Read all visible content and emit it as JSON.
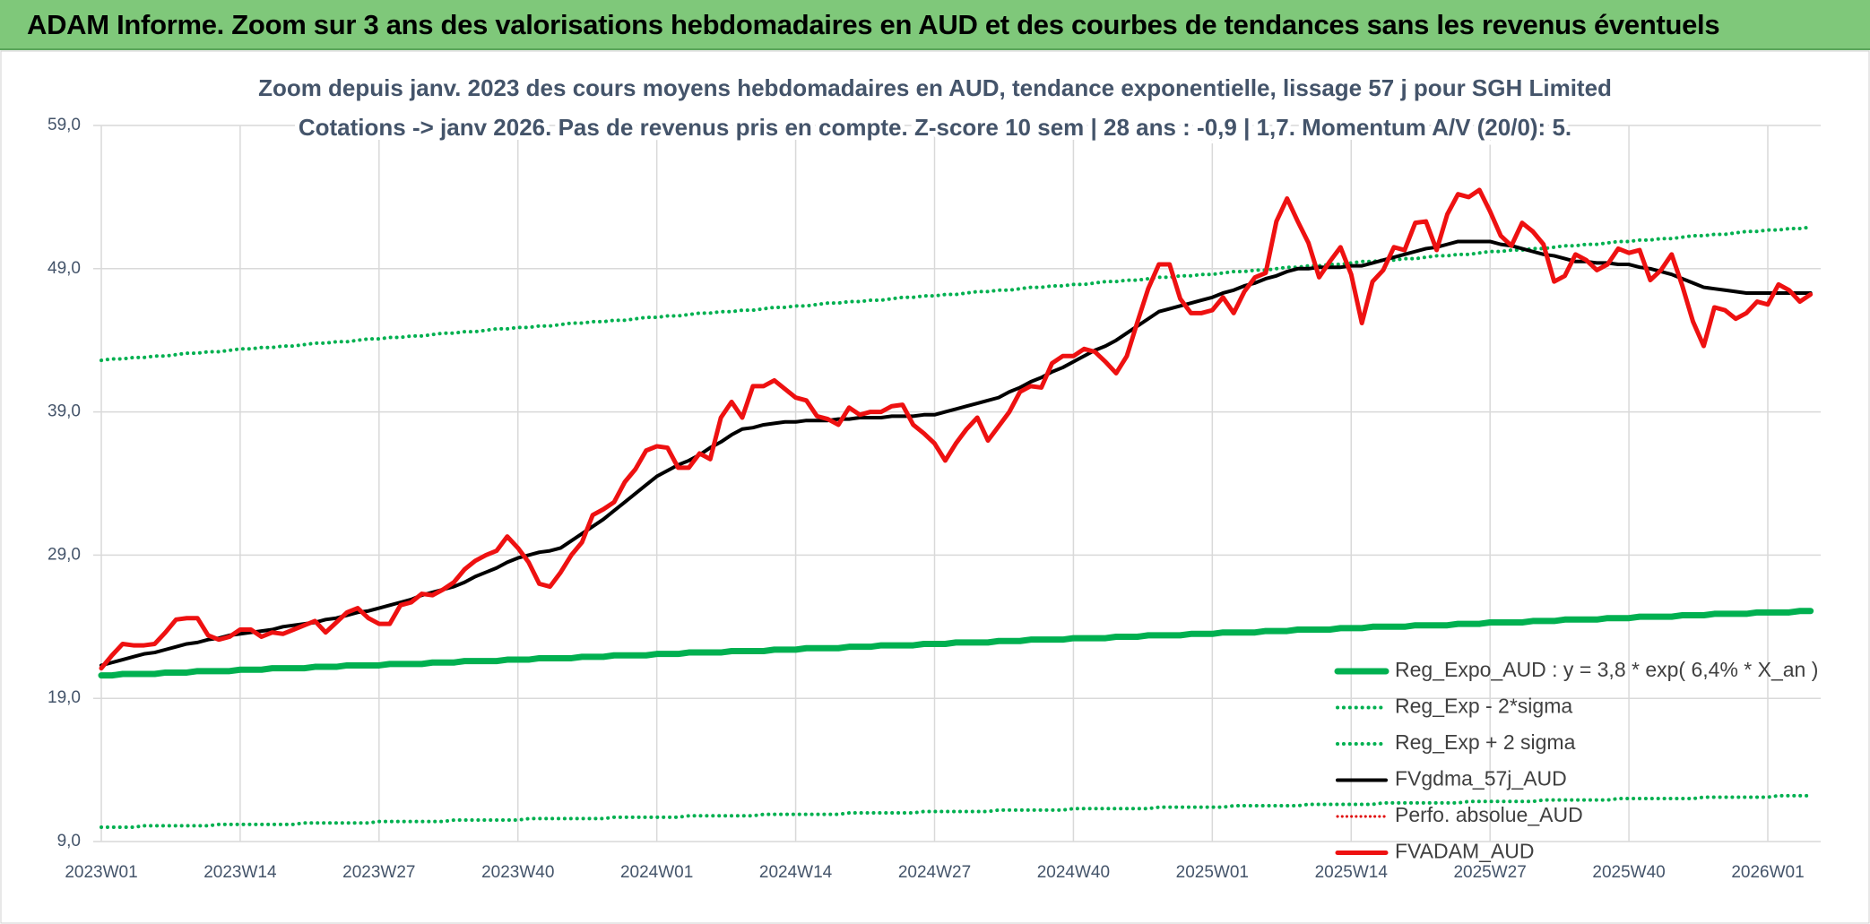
{
  "chart_data": {
    "type": "line",
    "title": "ADAM Informe. Zoom sur 3 ans des valorisations hebdomadaires en AUD et des courbes de tendances sans les revenus éventuels",
    "subtitle": [
      "Zoom depuis janv. 2023 des cours moyens hebdomadaires en AUD, tendance exponentielle, lissage 57 j pour SGH Limited",
      "Cotations -> janv 2026. Pas de revenus pris en compte. Z-score 10 sem | 28 ans : -0,9 | 1,7. Momentum A/V (20/0): 5."
    ],
    "categories": [
      "2023W01",
      null,
      null,
      null,
      null,
      null,
      null,
      null,
      null,
      null,
      null,
      null,
      null,
      "2023W14",
      null,
      null,
      null,
      null,
      null,
      null,
      null,
      null,
      null,
      null,
      null,
      null,
      "2023W27",
      null,
      null,
      null,
      null,
      null,
      null,
      null,
      null,
      null,
      null,
      null,
      null,
      "2023W40",
      null,
      null,
      null,
      null,
      null,
      null,
      null,
      null,
      null,
      null,
      null,
      null,
      "2024W01",
      null,
      null,
      null,
      null,
      null,
      null,
      null,
      null,
      null,
      null,
      null,
      null,
      "2024W14",
      null,
      null,
      null,
      null,
      null,
      null,
      null,
      null,
      null,
      null,
      null,
      null,
      "2024W27",
      null,
      null,
      null,
      null,
      null,
      null,
      null,
      null,
      null,
      null,
      null,
      null,
      "2024W40",
      null,
      null,
      null,
      null,
      null,
      null,
      null,
      null,
      null,
      null,
      null,
      null,
      "2025W01",
      null,
      null,
      null,
      null,
      null,
      null,
      null,
      null,
      null,
      null,
      null,
      null,
      "2025W14",
      null,
      null,
      null,
      null,
      null,
      null,
      null,
      null,
      null,
      null,
      null,
      null,
      "2025W27",
      null,
      null,
      null,
      null,
      null,
      null,
      null,
      null,
      null,
      null,
      null,
      null,
      "2025W40",
      null,
      null,
      null,
      null,
      null,
      null,
      null,
      null,
      null,
      null,
      null,
      null,
      "2026W01",
      null,
      null,
      null,
      null
    ],
    "ylim": [
      9,
      59
    ],
    "yticks": [
      {
        "value": 9,
        "label": "9,0"
      },
      {
        "value": 19,
        "label": "19,0"
      },
      {
        "value": 29,
        "label": "29,0"
      },
      {
        "value": 39,
        "label": "39,0"
      },
      {
        "value": 49,
        "label": "49,0"
      },
      {
        "value": 59,
        "label": "59,0"
      }
    ],
    "grid": true,
    "legend": "lower-right",
    "series": [
      {
        "name": "Reg_Expo_AUD : y = 3,8 * exp( 6,4% * X_an )",
        "color": "#00b050",
        "dash": "solid",
        "width": 7,
        "values": [
          20.6,
          20.6,
          20.7,
          20.7,
          20.7,
          20.7,
          20.8,
          20.8,
          20.8,
          20.9,
          20.9,
          20.9,
          20.9,
          21.0,
          21.0,
          21.0,
          21.1,
          21.1,
          21.1,
          21.1,
          21.2,
          21.2,
          21.2,
          21.3,
          21.3,
          21.3,
          21.3,
          21.4,
          21.4,
          21.4,
          21.4,
          21.5,
          21.5,
          21.5,
          21.6,
          21.6,
          21.6,
          21.6,
          21.7,
          21.7,
          21.7,
          21.8,
          21.8,
          21.8,
          21.8,
          21.9,
          21.9,
          21.9,
          22.0,
          22.0,
          22.0,
          22.0,
          22.1,
          22.1,
          22.1,
          22.2,
          22.2,
          22.2,
          22.2,
          22.3,
          22.3,
          22.3,
          22.3,
          22.4,
          22.4,
          22.4,
          22.5,
          22.5,
          22.5,
          22.5,
          22.6,
          22.6,
          22.6,
          22.7,
          22.7,
          22.7,
          22.7,
          22.8,
          22.8,
          22.8,
          22.9,
          22.9,
          22.9,
          22.9,
          23.0,
          23.0,
          23.0,
          23.1,
          23.1,
          23.1,
          23.1,
          23.2,
          23.2,
          23.2,
          23.2,
          23.3,
          23.3,
          23.3,
          23.4,
          23.4,
          23.4,
          23.4,
          23.5,
          23.5,
          23.5,
          23.6,
          23.6,
          23.6,
          23.6,
          23.7,
          23.7,
          23.7,
          23.8,
          23.8,
          23.8,
          23.8,
          23.9,
          23.9,
          23.9,
          24.0,
          24.0,
          24.0,
          24.0,
          24.1,
          24.1,
          24.1,
          24.1,
          24.2,
          24.2,
          24.2,
          24.3,
          24.3,
          24.3,
          24.3,
          24.4,
          24.4,
          24.4,
          24.5,
          24.5,
          24.5,
          24.5,
          24.6,
          24.6,
          24.6,
          24.7,
          24.7,
          24.7,
          24.7,
          24.8,
          24.8,
          24.8,
          24.9,
          24.9,
          24.9,
          24.9,
          25.0,
          25.0,
          25.0,
          25.0,
          25.1,
          25.1
        ]
      },
      {
        "name": "Reg_Exp - 2*sigma",
        "color": "#00b050",
        "dash": "dotted",
        "width": 4,
        "values": [
          10.0,
          10.0,
          10.0,
          10.0,
          10.1,
          10.1,
          10.1,
          10.1,
          10.1,
          10.1,
          10.1,
          10.2,
          10.2,
          10.2,
          10.2,
          10.2,
          10.2,
          10.2,
          10.2,
          10.3,
          10.3,
          10.3,
          10.3,
          10.3,
          10.3,
          10.3,
          10.4,
          10.4,
          10.4,
          10.4,
          10.4,
          10.4,
          10.4,
          10.5,
          10.5,
          10.5,
          10.5,
          10.5,
          10.5,
          10.5,
          10.6,
          10.6,
          10.6,
          10.6,
          10.6,
          10.6,
          10.6,
          10.6,
          10.7,
          10.7,
          10.7,
          10.7,
          10.7,
          10.7,
          10.7,
          10.8,
          10.8,
          10.8,
          10.8,
          10.8,
          10.8,
          10.8,
          10.9,
          10.9,
          10.9,
          10.9,
          10.9,
          10.9,
          10.9,
          10.9,
          11.0,
          11.0,
          11.0,
          11.0,
          11.0,
          11.0,
          11.0,
          11.1,
          11.1,
          11.1,
          11.1,
          11.1,
          11.1,
          11.1,
          11.2,
          11.2,
          11.2,
          11.2,
          11.2,
          11.2,
          11.2,
          11.3,
          11.3,
          11.3,
          11.3,
          11.3,
          11.3,
          11.3,
          11.3,
          11.4,
          11.4,
          11.4,
          11.4,
          11.4,
          11.4,
          11.4,
          11.5,
          11.5,
          11.5,
          11.5,
          11.5,
          11.5,
          11.5,
          11.6,
          11.6,
          11.6,
          11.6,
          11.6,
          11.6,
          11.6,
          11.7,
          11.7,
          11.7,
          11.7,
          11.7,
          11.7,
          11.7,
          11.7,
          11.8,
          11.8,
          11.8,
          11.8,
          11.8,
          11.8,
          11.8,
          11.9,
          11.9,
          11.9,
          11.9,
          11.9,
          11.9,
          11.9,
          12.0,
          12.0,
          12.0,
          12.0,
          12.0,
          12.0,
          12.0,
          12.0,
          12.1,
          12.1,
          12.1,
          12.1,
          12.1,
          12.1,
          12.1,
          12.2,
          12.2,
          12.2,
          12.2
        ]
      },
      {
        "name": "Reg_Exp + 2 sigma",
        "color": "#00b050",
        "dash": "dotted",
        "width": 4,
        "values": [
          42.6,
          42.7,
          42.7,
          42.8,
          42.8,
          42.9,
          42.9,
          43.0,
          43.1,
          43.1,
          43.2,
          43.2,
          43.3,
          43.4,
          43.4,
          43.5,
          43.5,
          43.6,
          43.6,
          43.7,
          43.8,
          43.8,
          43.9,
          43.9,
          44.0,
          44.1,
          44.1,
          44.2,
          44.2,
          44.3,
          44.3,
          44.4,
          44.5,
          44.5,
          44.6,
          44.6,
          44.7,
          44.8,
          44.8,
          44.9,
          44.9,
          45.0,
          45.0,
          45.1,
          45.2,
          45.2,
          45.3,
          45.3,
          45.4,
          45.4,
          45.5,
          45.6,
          45.6,
          45.7,
          45.7,
          45.8,
          45.9,
          45.9,
          46.0,
          46.0,
          46.1,
          46.1,
          46.2,
          46.3,
          46.3,
          46.4,
          46.4,
          46.5,
          46.6,
          46.6,
          46.7,
          46.7,
          46.8,
          46.8,
          46.9,
          47.0,
          47.0,
          47.1,
          47.1,
          47.2,
          47.2,
          47.3,
          47.4,
          47.4,
          47.5,
          47.5,
          47.6,
          47.7,
          47.7,
          47.8,
          47.8,
          47.9,
          47.9,
          48.0,
          48.1,
          48.1,
          48.2,
          48.2,
          48.3,
          48.4,
          48.4,
          48.5,
          48.5,
          48.6,
          48.6,
          48.7,
          48.8,
          48.8,
          48.9,
          48.9,
          49.0,
          49.1,
          49.1,
          49.2,
          49.2,
          49.3,
          49.3,
          49.4,
          49.5,
          49.5,
          49.6,
          49.6,
          49.7,
          49.7,
          49.8,
          49.9,
          49.9,
          50.0,
          50.0,
          50.1,
          50.2,
          50.2,
          50.3,
          50.3,
          50.4,
          50.4,
          50.5,
          50.6,
          50.6,
          50.7,
          50.7,
          50.8,
          50.9,
          50.9,
          51.0,
          51.0,
          51.1,
          51.1,
          51.2,
          51.3,
          51.3,
          51.4,
          51.4,
          51.5,
          51.6,
          51.6,
          51.7,
          51.7,
          51.8,
          51.8,
          51.9
        ]
      },
      {
        "name": "FVgdma_57j_AUD",
        "color": "#000000",
        "dash": "solid",
        "width": 4,
        "values": [
          21.3,
          21.5,
          21.7,
          21.9,
          22.1,
          22.2,
          22.4,
          22.6,
          22.8,
          22.9,
          23.1,
          23.2,
          23.4,
          23.5,
          23.6,
          23.7,
          23.8,
          24.0,
          24.1,
          24.2,
          24.3,
          24.5,
          24.6,
          24.8,
          25.0,
          25.1,
          25.3,
          25.5,
          25.7,
          25.9,
          26.2,
          26.4,
          26.6,
          26.8,
          27.1,
          27.5,
          27.8,
          28.1,
          28.5,
          28.8,
          29.0,
          29.2,
          29.3,
          29.5,
          30.0,
          30.5,
          31.0,
          31.5,
          32.1,
          32.7,
          33.3,
          33.9,
          34.5,
          34.9,
          35.3,
          35.6,
          36.0,
          36.5,
          36.9,
          37.4,
          37.8,
          37.9,
          38.1,
          38.2,
          38.3,
          38.3,
          38.4,
          38.4,
          38.4,
          38.5,
          38.5,
          38.6,
          38.6,
          38.6,
          38.7,
          38.7,
          38.7,
          38.8,
          38.8,
          39.0,
          39.2,
          39.4,
          39.6,
          39.8,
          40.0,
          40.4,
          40.7,
          41.1,
          41.4,
          41.8,
          42.1,
          42.5,
          42.9,
          43.3,
          43.6,
          44.0,
          44.5,
          45.0,
          45.5,
          46.0,
          46.2,
          46.4,
          46.6,
          46.8,
          47.0,
          47.3,
          47.5,
          47.8,
          48.0,
          48.3,
          48.5,
          48.8,
          49.0,
          49.0,
          49.1,
          49.1,
          49.1,
          49.2,
          49.2,
          49.4,
          49.6,
          49.8,
          50.0,
          50.2,
          50.4,
          50.5,
          50.7,
          50.9,
          50.9,
          50.9,
          50.9,
          50.7,
          50.6,
          50.4,
          50.2,
          50.0,
          49.9,
          49.7,
          49.5,
          49.5,
          49.4,
          49.4,
          49.3,
          49.3,
          49.1,
          49.0,
          48.8,
          48.6,
          48.3,
          48.0,
          47.7,
          47.6,
          47.5,
          47.4,
          47.3,
          47.3,
          47.3,
          47.3,
          47.3,
          47.3,
          47.3
        ]
      },
      {
        "name": "Perfo. absolue_AUD",
        "color": "#e00000",
        "dash": "dotted",
        "width": 3
      },
      {
        "name": "FVADAM_AUD",
        "color": "#ee1111",
        "dash": "solid",
        "width": 5,
        "values": [
          21.1,
          22.0,
          22.8,
          22.7,
          22.7,
          22.8,
          23.6,
          24.5,
          24.6,
          24.6,
          23.4,
          23.1,
          23.3,
          23.8,
          23.8,
          23.3,
          23.6,
          23.5,
          23.8,
          24.1,
          24.4,
          23.6,
          24.3,
          25.0,
          25.3,
          24.6,
          24.2,
          24.2,
          25.5,
          25.7,
          26.3,
          26.2,
          26.6,
          27.1,
          28.0,
          28.6,
          29.0,
          29.3,
          30.3,
          29.5,
          28.5,
          27.0,
          26.8,
          27.8,
          29.0,
          29.9,
          31.8,
          32.2,
          32.7,
          34.1,
          35.0,
          36.3,
          36.6,
          36.5,
          35.1,
          35.1,
          36.1,
          35.7,
          38.6,
          39.7,
          38.6,
          40.8,
          40.8,
          41.2,
          40.6,
          40.0,
          39.8,
          38.7,
          38.5,
          38.1,
          39.3,
          38.8,
          39.0,
          39.0,
          39.4,
          39.5,
          38.1,
          37.5,
          36.8,
          35.6,
          36.8,
          37.8,
          38.6,
          37.0,
          38.0,
          39.0,
          40.4,
          40.8,
          40.7,
          42.4,
          42.9,
          42.9,
          43.4,
          43.2,
          42.5,
          41.7,
          42.9,
          45.3,
          47.6,
          49.3,
          49.3,
          46.9,
          45.9,
          45.9,
          46.1,
          47.0,
          45.9,
          47.4,
          48.4,
          48.7,
          52.3,
          53.9,
          52.3,
          50.8,
          48.4,
          49.5,
          50.5,
          48.6,
          45.2,
          48.1,
          48.9,
          50.5,
          50.3,
          52.2,
          52.3,
          50.3,
          52.8,
          54.2,
          54.0,
          54.5,
          53.0,
          51.3,
          50.6,
          52.2,
          51.6,
          50.7,
          48.1,
          48.5,
          50.0,
          49.6,
          48.9,
          49.3,
          50.4,
          50.1,
          50.3,
          48.2,
          48.9,
          50.0,
          47.8,
          45.3,
          43.6,
          46.3,
          46.1,
          45.5,
          45.9,
          46.7,
          46.5,
          47.9,
          47.5,
          46.7,
          47.2
        ]
      }
    ]
  }
}
